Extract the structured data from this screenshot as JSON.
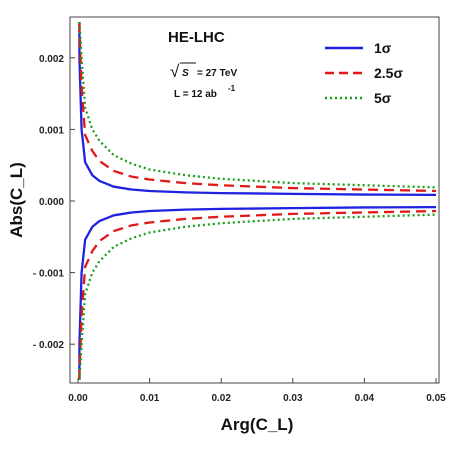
{
  "chart_data": {
    "type": "line",
    "title": "",
    "xlabel": "Arg(C_L)",
    "ylabel": "Abs(C_L)",
    "xlim": [
      0,
      0.05
    ],
    "ylim": [
      -0.0025,
      0.0025
    ],
    "x_ticks": [
      "0.00",
      "0.01",
      "0.02",
      "0.03",
      "0.04",
      "0.05"
    ],
    "y_ticks": [
      "- 0.002",
      "- 0.001",
      "0.000",
      "0.001",
      "0.002"
    ],
    "grid": false,
    "legend_position": "top-right",
    "annotations": {
      "title": "HE-LHC",
      "energy_line": "= 27 TeV",
      "energy_symbol": "S",
      "lumi_line": "L = 12 ab",
      "lumi_exp": "-1"
    },
    "series": [
      {
        "name": "1σ",
        "color": "#1f22e0",
        "style": "solid",
        "x": [
          0.0002,
          0.0005,
          0.001,
          0.002,
          0.003,
          0.005,
          0.0075,
          0.01,
          0.015,
          0.02,
          0.03,
          0.04,
          0.05
        ],
        "upper": [
          0.002,
          0.001,
          0.00054,
          0.00036,
          0.00028,
          0.0002,
          0.00016,
          0.00014,
          0.00012,
          0.00011,
          0.0001,
          9e-05,
          8.5e-05
        ],
        "lower": [
          -0.002,
          -0.001,
          -0.00054,
          -0.00036,
          -0.00028,
          -0.0002,
          -0.00016,
          -0.00014,
          -0.00012,
          -0.00011,
          -0.0001,
          -9e-05,
          -8.5e-05
        ]
      },
      {
        "name": "2.5σ",
        "color": "#e01818",
        "style": "dashed",
        "x": [
          0.0002,
          0.0005,
          0.001,
          0.002,
          0.003,
          0.005,
          0.0075,
          0.01,
          0.015,
          0.02,
          0.03,
          0.04,
          0.05
        ],
        "upper": [
          0.0024,
          0.0016,
          0.00092,
          0.0007,
          0.00056,
          0.00042,
          0.00034,
          0.0003,
          0.00025,
          0.00022,
          0.00018,
          0.00016,
          0.00014
        ],
        "lower": [
          -0.0024,
          -0.0016,
          -0.00092,
          -0.0007,
          -0.00056,
          -0.00042,
          -0.00034,
          -0.0003,
          -0.00025,
          -0.00022,
          -0.00018,
          -0.00016,
          -0.00014
        ]
      },
      {
        "name": "5σ",
        "color": "#1a9e1a",
        "style": "dotted",
        "x": [
          0.0002,
          0.0005,
          0.001,
          0.002,
          0.003,
          0.005,
          0.0075,
          0.01,
          0.015,
          0.02,
          0.03,
          0.04,
          0.05
        ],
        "upper": [
          0.0025,
          0.002,
          0.0013,
          0.001,
          0.00084,
          0.00064,
          0.00052,
          0.00044,
          0.00036,
          0.00031,
          0.00025,
          0.00022,
          0.00019
        ],
        "lower": [
          -0.0025,
          -0.002,
          -0.0013,
          -0.001,
          -0.00084,
          -0.00064,
          -0.00052,
          -0.00044,
          -0.00036,
          -0.00031,
          -0.00025,
          -0.00022,
          -0.00019
        ]
      }
    ]
  }
}
